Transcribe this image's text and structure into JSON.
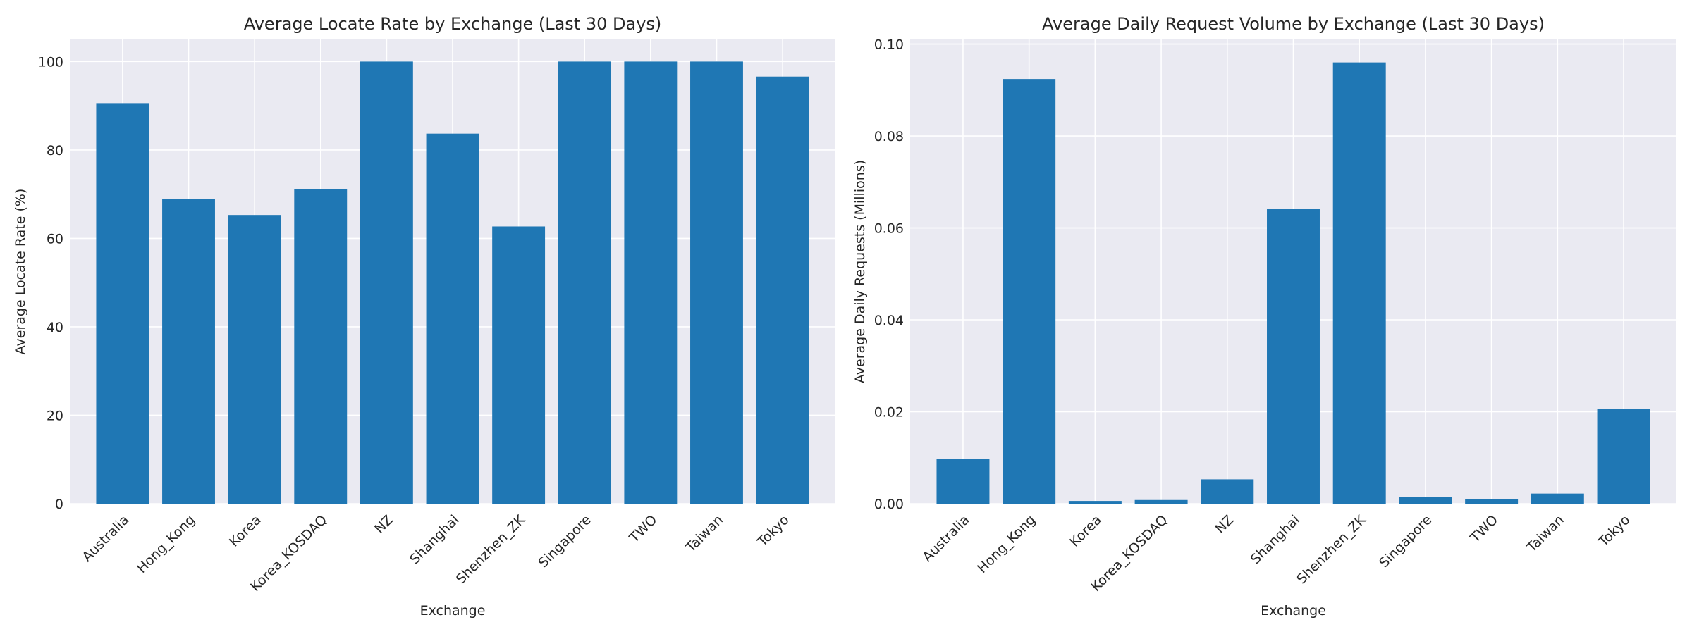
{
  "colors": {
    "bar": "#1f77b4",
    "plot_background": "#eaeaf2",
    "grid": "#ffffff"
  },
  "chart_data": [
    {
      "type": "bar",
      "title": "Average Locate Rate by Exchange (Last 30 Days)",
      "xlabel": "Exchange",
      "ylabel": "Average Locate Rate (%)",
      "categories": [
        "Australia",
        "Hong_Kong",
        "Korea",
        "Korea_KOSDAQ",
        "NZ",
        "Shanghai",
        "Shenzhen_ZK",
        "Singapore",
        "TWO",
        "Taiwan",
        "Tokyo"
      ],
      "values": [
        90.6,
        68.9,
        65.3,
        71.2,
        100.0,
        83.7,
        62.7,
        100.0,
        100.0,
        100.0,
        96.6
      ],
      "ylim": [
        0,
        105
      ],
      "yticks": [
        0,
        20,
        40,
        60,
        80,
        100
      ],
      "ytick_labels": [
        "0",
        "20",
        "40",
        "60",
        "80",
        "100"
      ],
      "grid": true
    },
    {
      "type": "bar",
      "title": "Average Daily Request Volume by Exchange (Last 30 Days)",
      "xlabel": "Exchange",
      "ylabel": "Average Daily Requests (Millions)",
      "categories": [
        "Australia",
        "Hong_Kong",
        "Korea",
        "Korea_KOSDAQ",
        "NZ",
        "Shanghai",
        "Shenzhen_ZK",
        "Singapore",
        "TWO",
        "Taiwan",
        "Tokyo"
      ],
      "values": [
        0.0097,
        0.0924,
        0.0006,
        0.0008,
        0.0053,
        0.0641,
        0.096,
        0.0015,
        0.001,
        0.0022,
        0.0206
      ],
      "ylim": [
        0,
        0.101
      ],
      "yticks": [
        0,
        0.02,
        0.04,
        0.06,
        0.08,
        0.1
      ],
      "ytick_labels": [
        "0.00",
        "0.02",
        "0.04",
        "0.06",
        "0.08",
        "0.10"
      ],
      "grid": true
    }
  ]
}
